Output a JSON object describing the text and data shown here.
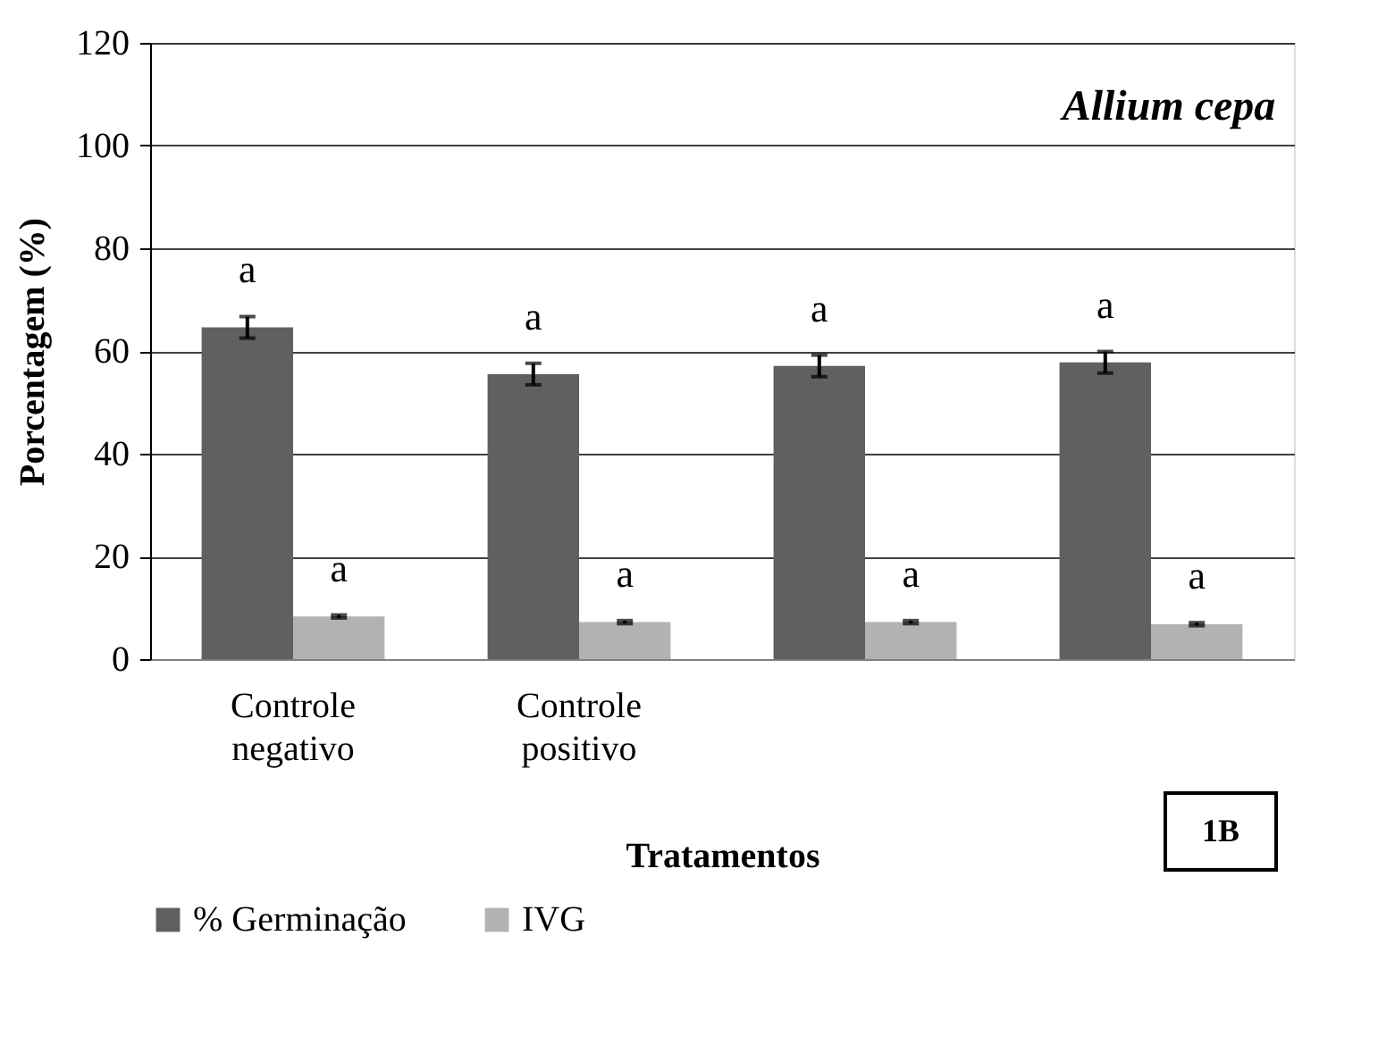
{
  "chart_data": {
    "type": "bar",
    "xlabel": "Tratamentos",
    "ylabel": "Porcentagem (%)",
    "categories": [
      "Controle negativo",
      "Controle positivo",
      null,
      null
    ],
    "series": [
      {
        "name": "% Germinação",
        "color": "#606060",
        "values": [
          64.6,
          55.5,
          57.1,
          57.8
        ],
        "errors": [
          2.1,
          2.1,
          2.1,
          2.1
        ],
        "value_labels": [
          "a",
          "a",
          "a",
          "a"
        ]
      },
      {
        "name": "IVG",
        "color": "#b2b2b2",
        "values": [
          8.3,
          7.2,
          7.2,
          6.8
        ],
        "errors": [
          0.3,
          0.3,
          0.3,
          0.3
        ],
        "value_labels": [
          "a",
          "a",
          "a",
          "a"
        ]
      }
    ],
    "ylim": [
      0,
      120
    ],
    "yticks": [
      0,
      20,
      40,
      60,
      80,
      100,
      120
    ],
    "grid": "y",
    "legend": "bottom",
    "annotations": [
      "Allium cepa",
      "1B"
    ]
  }
}
